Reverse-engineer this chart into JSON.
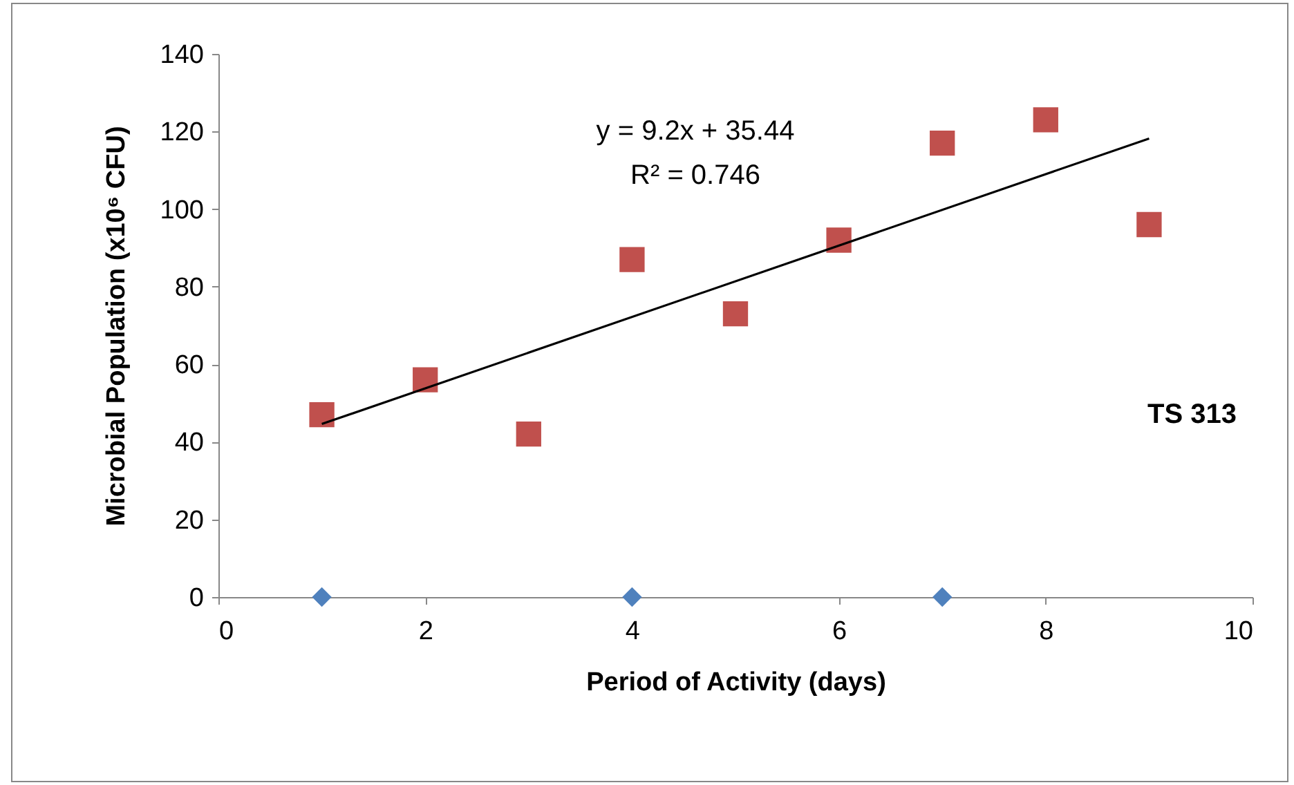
{
  "chart_data": {
    "type": "scatter",
    "xlabel": "Period of Activity (days)",
    "ylabel": "Microbial Population (x10⁶ CFU)",
    "xlim": [
      0,
      10
    ],
    "xticks": [
      0,
      2,
      4,
      6,
      8,
      10
    ],
    "ylim": [
      0,
      140
    ],
    "yticks": [
      0,
      20,
      40,
      60,
      80,
      100,
      120,
      140
    ],
    "series": [
      {
        "color": "#4f81bd",
        "marker": "diamond",
        "x": [
          1,
          4,
          7
        ],
        "values": [
          0,
          0,
          0
        ]
      },
      {
        "color": "#c0504d",
        "marker": "square",
        "x": [
          1,
          2,
          3,
          4,
          5,
          6,
          7,
          8,
          9
        ],
        "values": [
          47,
          56,
          42,
          87,
          73,
          92,
          117,
          123,
          96
        ]
      },
      {
        "type": "line",
        "color": "#000000",
        "x": [
          1,
          9
        ],
        "values": [
          44.6,
          118.2
        ]
      }
    ],
    "annotations": [
      "y = 9.2x + 35.44",
      "R² = 0.746",
      "TS 313"
    ]
  }
}
